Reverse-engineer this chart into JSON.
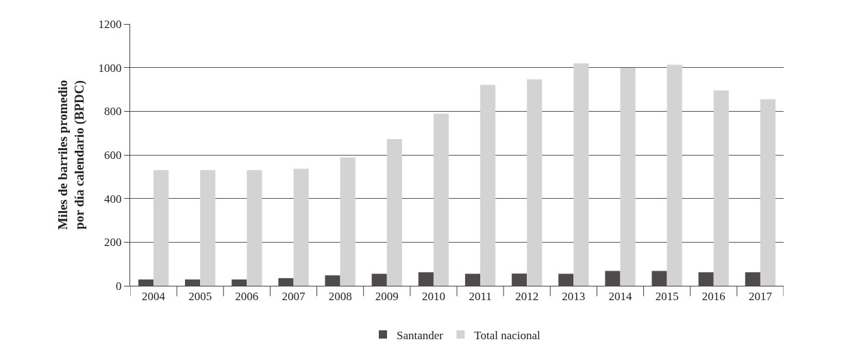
{
  "chart_data": {
    "type": "bar",
    "ylabel": "Miles de barriles promedio\npor día calendario (BPDC)",
    "categories": [
      "2004",
      "2005",
      "2006",
      "2007",
      "2008",
      "2009",
      "2010",
      "2011",
      "2012",
      "2013",
      "2014",
      "2015",
      "2016",
      "2017"
    ],
    "series": [
      {
        "name": "Santander",
        "color": "#4f4a4b",
        "values": [
          29,
          29,
          29,
          35,
          48,
          55,
          62,
          55,
          56,
          55,
          68,
          68,
          62,
          62
        ]
      },
      {
        "name": "Total nacional",
        "color": "#d3d3d3",
        "values": [
          530,
          530,
          530,
          536,
          588,
          672,
          789,
          921,
          946,
          1019,
          999,
          1013,
          895,
          855
        ]
      }
    ],
    "ylim": [
      0,
      1200
    ],
    "yticks": [
      0,
      200,
      400,
      600,
      800,
      1000,
      1200
    ],
    "grid": "y",
    "legend": "bottom"
  }
}
